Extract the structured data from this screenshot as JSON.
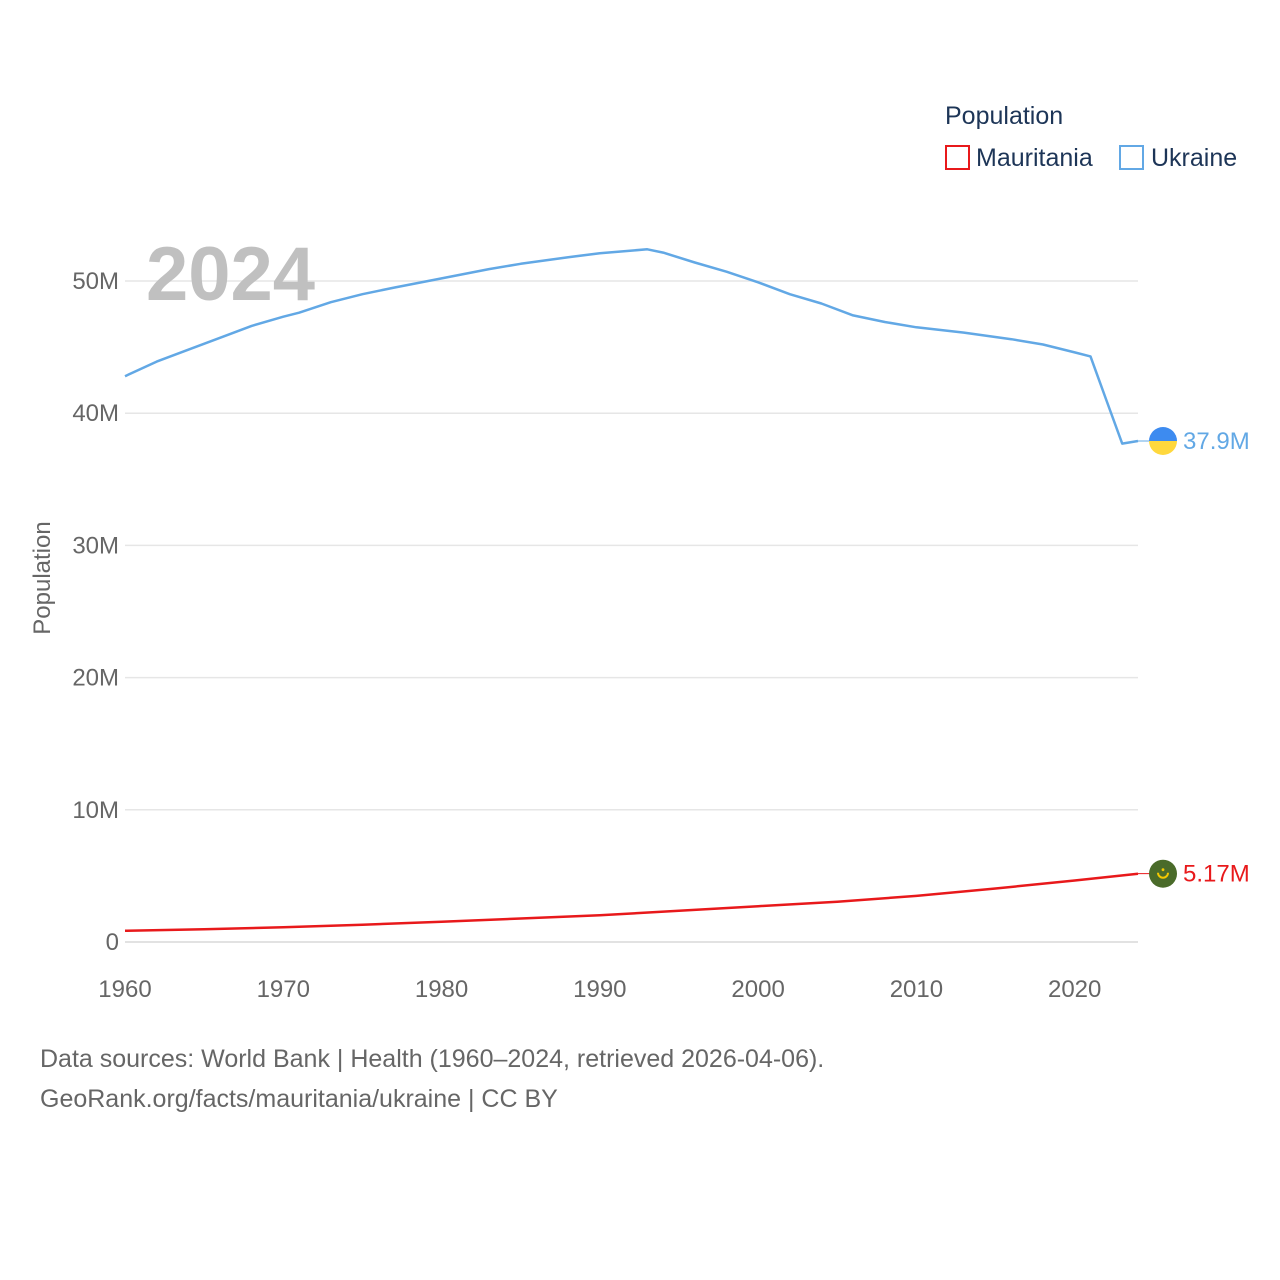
{
  "chart_data": {
    "type": "line",
    "ylabel": "Population",
    "year_overlay": "2024",
    "legend": {
      "title": "Population",
      "position": "top-right",
      "items": [
        {
          "name": "Mauritania",
          "color": "#e8191b"
        },
        {
          "name": "Ukraine",
          "color": "#62a8e5"
        }
      ]
    },
    "xlim": [
      1960,
      2024
    ],
    "ylim": [
      0,
      52000000
    ],
    "x_ticks": [
      "1960",
      "1970",
      "1980",
      "1990",
      "2000",
      "2010",
      "2020"
    ],
    "y_ticks": [
      {
        "value": 0,
        "label": "0"
      },
      {
        "value": 10000000,
        "label": "10M"
      },
      {
        "value": 20000000,
        "label": "20M"
      },
      {
        "value": 30000000,
        "label": "30M"
      },
      {
        "value": 40000000,
        "label": "40M"
      },
      {
        "value": 50000000,
        "label": "50M"
      }
    ],
    "series": [
      {
        "name": "Ukraine",
        "color": "#62a8e5",
        "end_label": "37.9M",
        "flag_icon": "ukraine-flag-icon",
        "x": [
          1960,
          1962,
          1964,
          1966,
          1968,
          1970,
          1971,
          1973,
          1975,
          1977,
          1980,
          1983,
          1985,
          1988,
          1990,
          1992,
          1993,
          1994,
          1996,
          1998,
          2000,
          2002,
          2004,
          2006,
          2008,
          2010,
          2013,
          2016,
          2018,
          2020,
          2021,
          2022,
          2023,
          2024
        ],
        "values": [
          42800000,
          43900000,
          44800000,
          45700000,
          46600000,
          47300000,
          47600000,
          48400000,
          49000000,
          49500000,
          50200000,
          50900000,
          51300000,
          51800000,
          52100000,
          52300000,
          52400000,
          52150000,
          51400000,
          50700000,
          49900000,
          49000000,
          48300000,
          47400000,
          46900000,
          46500000,
          46100000,
          45600000,
          45200000,
          44600000,
          44300000,
          41000000,
          37700000,
          37900000
        ]
      },
      {
        "name": "Mauritania",
        "color": "#e8191b",
        "end_label": "5.17M",
        "flag_icon": "mauritania-flag-icon",
        "x": [
          1960,
          1965,
          1970,
          1975,
          1980,
          1985,
          1990,
          1995,
          2000,
          2005,
          2010,
          2015,
          2020,
          2024
        ],
        "values": [
          850000,
          960000,
          1120000,
          1310000,
          1530000,
          1780000,
          2020000,
          2370000,
          2710000,
          3050000,
          3490000,
          4050000,
          4650000,
          5170000
        ]
      }
    ]
  },
  "footer": {
    "line1": "Data sources: World Bank | Health (1960–2024, retrieved 2026-04-06).",
    "line2": "GeoRank.org/facts/mauritania/ukraine | CC BY"
  }
}
